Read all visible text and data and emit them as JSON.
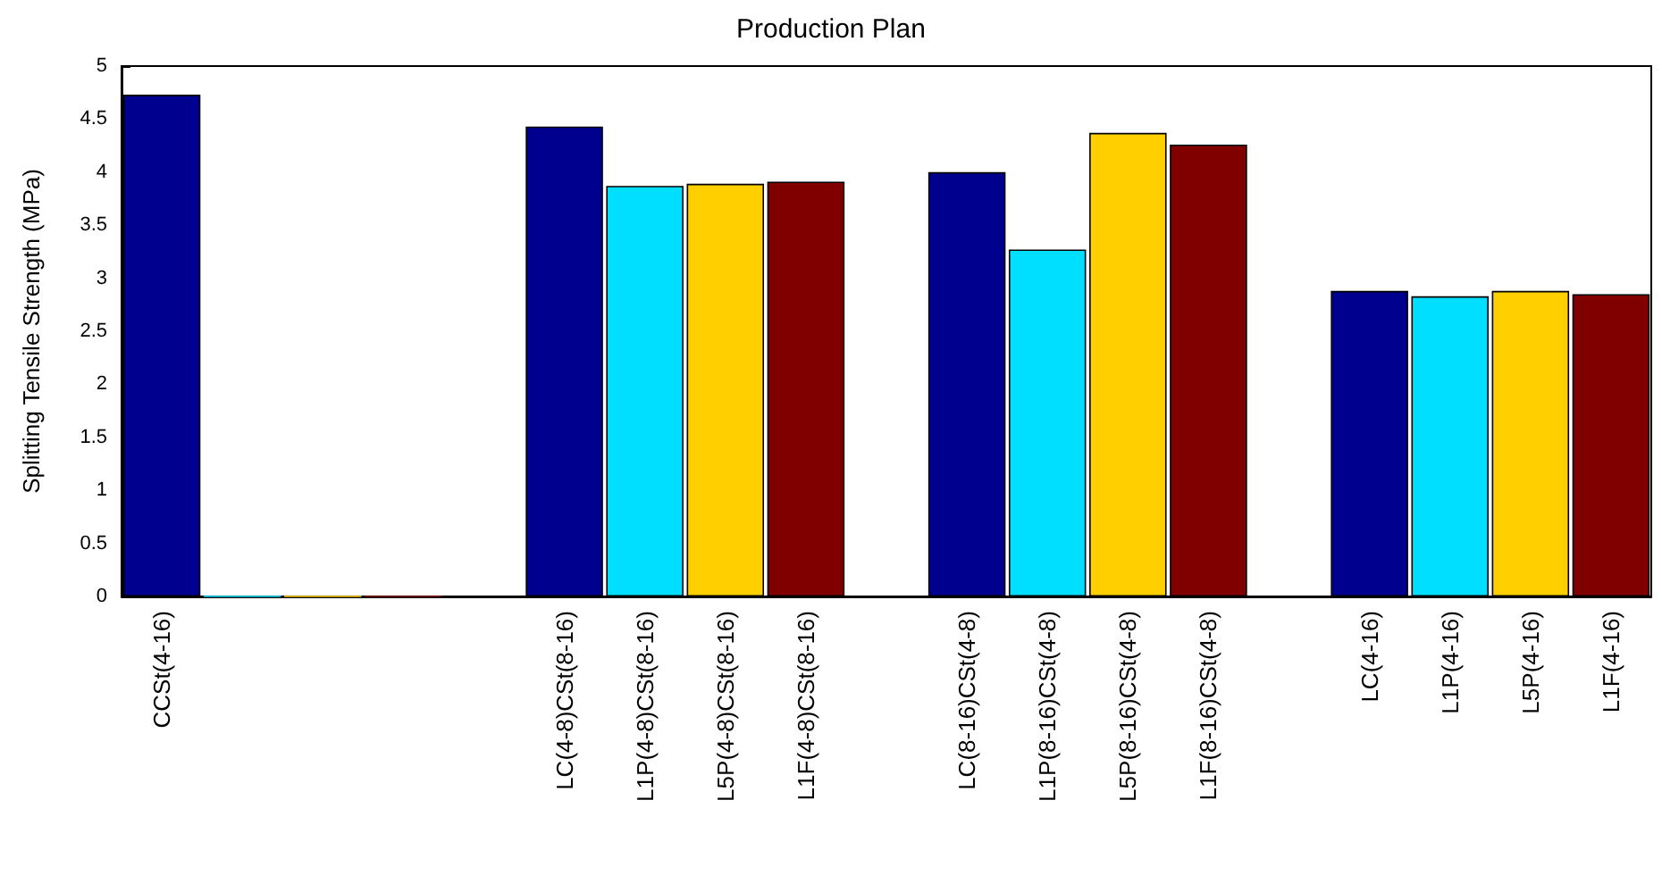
{
  "chart_data": {
    "type": "bar",
    "title": "Production Plan",
    "ylabel": "Splitting Tensile Strength (MPa)",
    "categories": [
      "CCSt(4-16)",
      null,
      null,
      null,
      null,
      "LC(4-8)CSt(8-16)",
      "L1P(4-8)CSt(8-16)",
      "L5P(4-8)CSt(8-16)",
      "L1F(4-8)CSt(8-16)",
      null,
      "LC(8-16)CSt(4-8)",
      "L1P(8-16)CSt(4-8)",
      "L5P(8-16)CSt(4-8)",
      "L1F(8-16)CSt(4-8)",
      null,
      "LC(4-16)",
      "L1P(4-16)",
      "L5P(4-16)",
      "L1F(4-16)"
    ],
    "values": [
      4.73,
      0,
      0,
      0,
      null,
      4.43,
      3.87,
      3.89,
      3.91,
      null,
      4.0,
      3.27,
      4.37,
      4.26,
      null,
      2.88,
      2.83,
      2.88,
      2.85
    ],
    "colors": [
      "#00008f",
      "#00dfff",
      "#ffcf00",
      "#800000",
      null,
      "#00008f",
      "#00dfff",
      "#ffcf00",
      "#800000",
      null,
      "#00008f",
      "#00dfff",
      "#ffcf00",
      "#800000",
      null,
      "#00008f",
      "#00dfff",
      "#ffcf00",
      "#800000"
    ],
    "ylim": [
      0,
      5
    ],
    "yticks": [
      0,
      0.5,
      1,
      1.5,
      2,
      2.5,
      3,
      3.5,
      4,
      4.5,
      5
    ]
  }
}
